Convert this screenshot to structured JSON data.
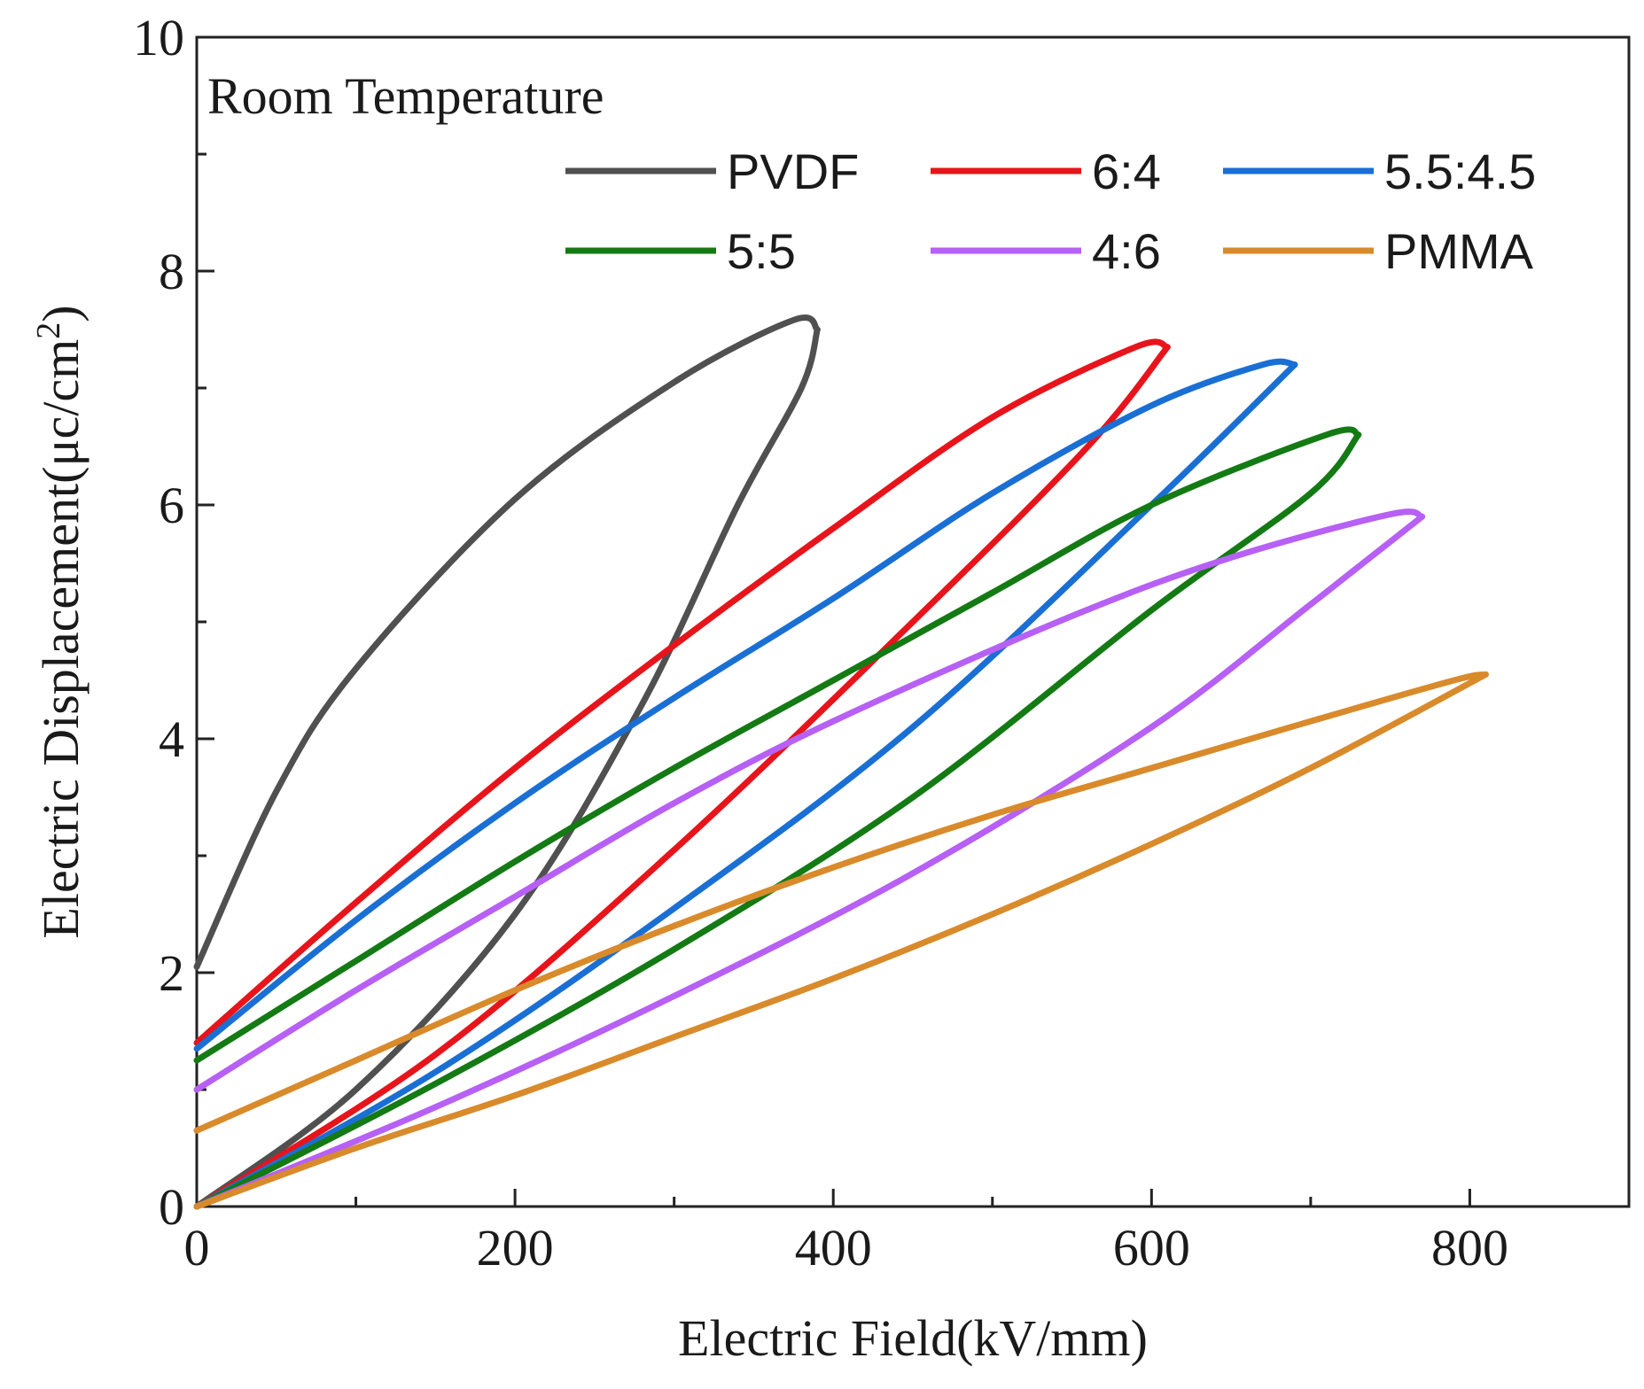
{
  "chart_data": {
    "type": "line",
    "title": "",
    "annotation": "Room Temperature",
    "xlabel": "Electric Field(kV/mm)",
    "ylabel_main": "Electric Displacement(μc/cm",
    "ylabel_sup": "2",
    "ylabel_close": ")",
    "xlim": [
      0,
      900
    ],
    "ylim": [
      0,
      10
    ],
    "x_ticks": [
      0,
      200,
      400,
      600,
      800
    ],
    "x_tick_labels": [
      "0",
      "200",
      "400",
      "600",
      "800"
    ],
    "x_minor_ticks": [
      100,
      300,
      500,
      700
    ],
    "y_ticks": [
      0,
      2,
      4,
      6,
      8,
      10
    ],
    "y_tick_labels": [
      "0",
      "2",
      "4",
      "6",
      "8",
      "10"
    ],
    "y_minor_ticks": [
      1,
      3,
      5,
      7,
      9
    ],
    "grid": false,
    "legend_position": "top-right",
    "series": [
      {
        "name": "PVDF",
        "color": "#505050",
        "charge": [
          [
            0,
            0
          ],
          [
            100,
            1.0
          ],
          [
            200,
            2.5
          ],
          [
            280,
            4.3
          ],
          [
            340,
            6.0
          ],
          [
            380,
            7.0
          ],
          [
            390,
            7.5
          ]
        ],
        "discharge": [
          [
            390,
            7.5
          ],
          [
            375,
            7.58
          ],
          [
            300,
            7.05
          ],
          [
            200,
            6.05
          ],
          [
            100,
            4.6
          ],
          [
            50,
            3.55
          ],
          [
            0,
            2.05
          ]
        ]
      },
      {
        "name": "6:4",
        "color": "#e8141b",
        "charge": [
          [
            0,
            0
          ],
          [
            150,
            1.3
          ],
          [
            300,
            3.05
          ],
          [
            450,
            5.0
          ],
          [
            560,
            6.5
          ],
          [
            610,
            7.35
          ]
        ],
        "discharge": [
          [
            610,
            7.35
          ],
          [
            590,
            7.35
          ],
          [
            500,
            6.75
          ],
          [
            400,
            5.8
          ],
          [
            300,
            4.8
          ],
          [
            200,
            3.75
          ],
          [
            100,
            2.6
          ],
          [
            0,
            1.4
          ]
        ]
      },
      {
        "name": "5.5:4.5",
        "color": "#1a6fd4",
        "charge": [
          [
            0,
            0
          ],
          [
            150,
            1.15
          ],
          [
            300,
            2.55
          ],
          [
            450,
            4.1
          ],
          [
            600,
            6.0
          ],
          [
            690,
            7.2
          ]
        ],
        "discharge": [
          [
            690,
            7.2
          ],
          [
            670,
            7.2
          ],
          [
            600,
            6.85
          ],
          [
            500,
            6.1
          ],
          [
            400,
            5.2
          ],
          [
            300,
            4.35
          ],
          [
            200,
            3.45
          ],
          [
            100,
            2.45
          ],
          [
            0,
            1.35
          ]
        ]
      },
      {
        "name": "5:5",
        "color": "#147a14",
        "charge": [
          [
            0,
            0
          ],
          [
            150,
            1.05
          ],
          [
            300,
            2.2
          ],
          [
            450,
            3.5
          ],
          [
            600,
            5.1
          ],
          [
            700,
            6.1
          ],
          [
            730,
            6.6
          ]
        ],
        "discharge": [
          [
            730,
            6.6
          ],
          [
            710,
            6.6
          ],
          [
            600,
            6.0
          ],
          [
            500,
            5.25
          ],
          [
            400,
            4.5
          ],
          [
            300,
            3.75
          ],
          [
            200,
            2.95
          ],
          [
            100,
            2.1
          ],
          [
            0,
            1.25
          ]
        ]
      },
      {
        "name": "4:6",
        "color": "#b760f5",
        "charge": [
          [
            0,
            0
          ],
          [
            150,
            0.85
          ],
          [
            300,
            1.8
          ],
          [
            450,
            2.85
          ],
          [
            600,
            4.1
          ],
          [
            700,
            5.15
          ],
          [
            770,
            5.9
          ]
        ],
        "discharge": [
          [
            770,
            5.9
          ],
          [
            750,
            5.92
          ],
          [
            650,
            5.55
          ],
          [
            550,
            5.05
          ],
          [
            400,
            4.15
          ],
          [
            300,
            3.45
          ],
          [
            200,
            2.65
          ],
          [
            100,
            1.85
          ],
          [
            0,
            1.0
          ]
        ]
      },
      {
        "name": "PMMA",
        "color": "#d98a2b",
        "charge": [
          [
            0,
            0
          ],
          [
            100,
            0.5
          ],
          [
            200,
            0.95
          ],
          [
            300,
            1.45
          ],
          [
            400,
            1.95
          ],
          [
            500,
            2.5
          ],
          [
            600,
            3.1
          ],
          [
            700,
            3.75
          ],
          [
            810,
            4.55
          ]
        ],
        "discharge": [
          [
            810,
            4.55
          ],
          [
            790,
            4.5
          ],
          [
            700,
            4.15
          ],
          [
            600,
            3.75
          ],
          [
            500,
            3.35
          ],
          [
            400,
            2.9
          ],
          [
            300,
            2.4
          ],
          [
            200,
            1.85
          ],
          [
            100,
            1.25
          ],
          [
            0,
            0.65
          ]
        ]
      }
    ]
  }
}
